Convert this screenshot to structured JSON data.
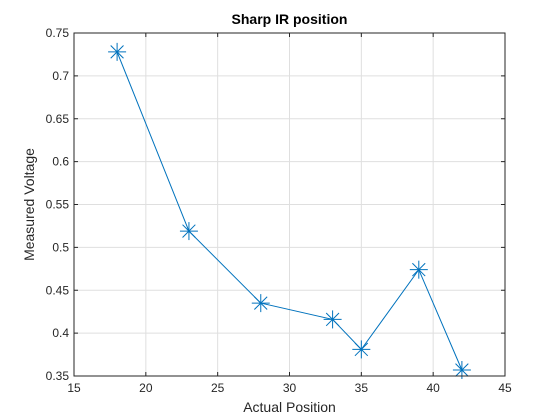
{
  "chart_data": {
    "type": "line",
    "title": "Sharp IR position",
    "xlabel": "Actual Position",
    "ylabel": "Measured Voltage",
    "xlim": [
      15,
      45
    ],
    "ylim": [
      0.35,
      0.75
    ],
    "xticks": [
      15,
      20,
      25,
      30,
      35,
      40,
      45
    ],
    "yticks": [
      0.35,
      0.4,
      0.45,
      0.5,
      0.55,
      0.6,
      0.65,
      0.7,
      0.75
    ],
    "xtick_labels": [
      "15",
      "20",
      "25",
      "30",
      "35",
      "40",
      "45"
    ],
    "ytick_labels": [
      "0.35",
      "0.4",
      "0.45",
      "0.5",
      "0.55",
      "0.6",
      "0.65",
      "0.7",
      "0.75"
    ],
    "grid": true,
    "marker": "asterisk",
    "series": [
      {
        "x": [
          18,
          23,
          28,
          33,
          35,
          39,
          42
        ],
        "y": [
          0.728,
          0.519,
          0.435,
          0.416,
          0.381,
          0.474,
          0.357
        ],
        "color": "#0072BD"
      }
    ]
  }
}
